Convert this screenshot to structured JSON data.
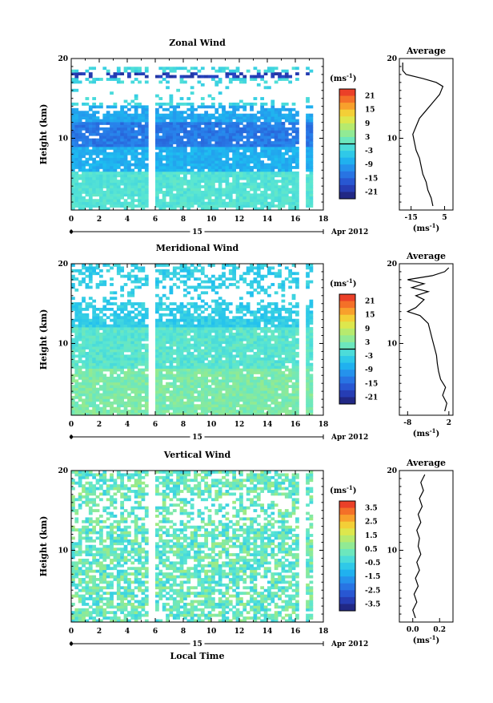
{
  "chart_data": [
    {
      "type": "heatmap",
      "title": "Zonal Wind",
      "ylabel": "Height (km)",
      "xlabel": "",
      "x_ticks": [
        "0",
        "2",
        "4",
        "6",
        "8",
        "10",
        "12",
        "14",
        "16",
        "18"
      ],
      "y_ticks": [
        "10",
        "20"
      ],
      "xlim": [
        0,
        18
      ],
      "ylim": [
        1,
        20
      ],
      "date_label": "15",
      "date_suffix": "Apr 2012",
      "colorbar": {
        "unit": "(ms",
        "unit_exp": "-1",
        "unit_close": ")",
        "ticks": [
          "21",
          "15",
          "9",
          "3",
          "-3",
          "-9",
          "-15",
          "-21"
        ],
        "range": [
          -24,
          24
        ]
      },
      "field": "zonal",
      "average": {
        "title": "Average",
        "xlabel": "(ms",
        "xlabel_exp": "-1",
        "xlabel_close": ")",
        "x_ticks": [
          "-15",
          "5"
        ],
        "xlim": [
          -22,
          10
        ],
        "y_ticks": [
          "10",
          "20"
        ],
        "profile": [
          {
            "h": 1.5,
            "v": -2
          },
          {
            "h": 2.5,
            "v": -3
          },
          {
            "h": 3.5,
            "v": -5
          },
          {
            "h": 4.5,
            "v": -6
          },
          {
            "h": 5.5,
            "v": -8
          },
          {
            "h": 6.5,
            "v": -9
          },
          {
            "h": 7.5,
            "v": -10
          },
          {
            "h": 8.5,
            "v": -12
          },
          {
            "h": 9.5,
            "v": -13
          },
          {
            "h": 10.5,
            "v": -14
          },
          {
            "h": 11.5,
            "v": -12
          },
          {
            "h": 12.5,
            "v": -10
          },
          {
            "h": 13.5,
            "v": -6
          },
          {
            "h": 14.5,
            "v": -2
          },
          {
            "h": 15.5,
            "v": 2
          },
          {
            "h": 16.5,
            "v": 4
          },
          {
            "h": 17.0,
            "v": 0
          },
          {
            "h": 17.5,
            "v": -8
          },
          {
            "h": 18.0,
            "v": -18
          },
          {
            "h": 18.5,
            "v": -20
          },
          {
            "h": 19.5,
            "v": -20
          }
        ]
      }
    },
    {
      "type": "heatmap",
      "title": "Meridional Wind",
      "ylabel": "Height (km)",
      "xlabel": "",
      "x_ticks": [
        "0",
        "2",
        "4",
        "6",
        "8",
        "10",
        "12",
        "14",
        "16",
        "18"
      ],
      "y_ticks": [
        "10",
        "20"
      ],
      "xlim": [
        0,
        18
      ],
      "ylim": [
        1,
        20
      ],
      "date_label": "15",
      "date_suffix": "Apr 2012",
      "colorbar": {
        "unit": "(ms",
        "unit_exp": "-1",
        "unit_close": ")",
        "ticks": [
          "21",
          "15",
          "9",
          "3",
          "-3",
          "-9",
          "-15",
          "-21"
        ],
        "range": [
          -24,
          24
        ]
      },
      "field": "meridional",
      "average": {
        "title": "Average",
        "xlabel": "(ms",
        "xlabel_exp": "-1",
        "xlabel_close": ")",
        "x_ticks": [
          "-8",
          "2"
        ],
        "xlim": [
          -10,
          3
        ],
        "y_ticks": [
          "10",
          "20"
        ],
        "profile": [
          {
            "h": 1.5,
            "v": 1
          },
          {
            "h": 2.5,
            "v": 1.5
          },
          {
            "h": 3.5,
            "v": 0.5
          },
          {
            "h": 4.5,
            "v": 1.2
          },
          {
            "h": 5.5,
            "v": 0
          },
          {
            "h": 6.5,
            "v": -0.5
          },
          {
            "h": 7.5,
            "v": -0.8
          },
          {
            "h": 8.5,
            "v": -1
          },
          {
            "h": 9.5,
            "v": -1.5
          },
          {
            "h": 10.5,
            "v": -2
          },
          {
            "h": 11.5,
            "v": -2.5
          },
          {
            "h": 12.5,
            "v": -3
          },
          {
            "h": 13.5,
            "v": -5
          },
          {
            "h": 14.0,
            "v": -8
          },
          {
            "h": 14.5,
            "v": -6
          },
          {
            "h": 15.5,
            "v": -4
          },
          {
            "h": 16.0,
            "v": -6
          },
          {
            "h": 16.5,
            "v": -3
          },
          {
            "h": 17.0,
            "v": -7
          },
          {
            "h": 17.5,
            "v": -4
          },
          {
            "h": 18.0,
            "v": -8
          },
          {
            "h": 18.5,
            "v": -2
          },
          {
            "h": 19.0,
            "v": 1
          },
          {
            "h": 19.5,
            "v": 2
          }
        ]
      }
    },
    {
      "type": "heatmap",
      "title": "Vertical Wind",
      "ylabel": "Height (km)",
      "xlabel": "Local Time",
      "x_ticks": [
        "0",
        "2",
        "4",
        "6",
        "8",
        "10",
        "12",
        "14",
        "16",
        "18"
      ],
      "y_ticks": [
        "10",
        "20"
      ],
      "xlim": [
        0,
        18
      ],
      "ylim": [
        1,
        20
      ],
      "date_label": "15",
      "date_suffix": "Apr 2012",
      "colorbar": {
        "unit": "(ms",
        "unit_exp": "-1",
        "unit_close": ")",
        "ticks": [
          "3.5",
          "2.5",
          "1.5",
          "0.5",
          "-0.5",
          "-1.5",
          "-2.5",
          "-3.5"
        ],
        "range": [
          -4,
          4
        ]
      },
      "field": "vertical",
      "average": {
        "title": "Average",
        "xlabel": "(ms",
        "xlabel_exp": "-1",
        "xlabel_close": ")",
        "x_ticks": [
          "0.0",
          "0.2"
        ],
        "xlim": [
          -0.1,
          0.3
        ],
        "y_ticks": [
          "10",
          "20"
        ],
        "profile": [
          {
            "h": 1.5,
            "v": 0.02
          },
          {
            "h": 2.5,
            "v": 0.0
          },
          {
            "h": 3.5,
            "v": 0.03
          },
          {
            "h": 4.5,
            "v": 0.01
          },
          {
            "h": 5.5,
            "v": 0.04
          },
          {
            "h": 6.5,
            "v": 0.02
          },
          {
            "h": 7.5,
            "v": 0.05
          },
          {
            "h": 8.5,
            "v": 0.03
          },
          {
            "h": 9.5,
            "v": 0.06
          },
          {
            "h": 10.5,
            "v": 0.04
          },
          {
            "h": 11.5,
            "v": 0.05
          },
          {
            "h": 12.5,
            "v": 0.03
          },
          {
            "h": 13.5,
            "v": 0.06
          },
          {
            "h": 14.5,
            "v": 0.04
          },
          {
            "h": 15.5,
            "v": 0.07
          },
          {
            "h": 16.5,
            "v": 0.05
          },
          {
            "h": 17.5,
            "v": 0.08
          },
          {
            "h": 18.5,
            "v": 0.06
          },
          {
            "h": 19.5,
            "v": 0.09
          }
        ]
      }
    }
  ]
}
